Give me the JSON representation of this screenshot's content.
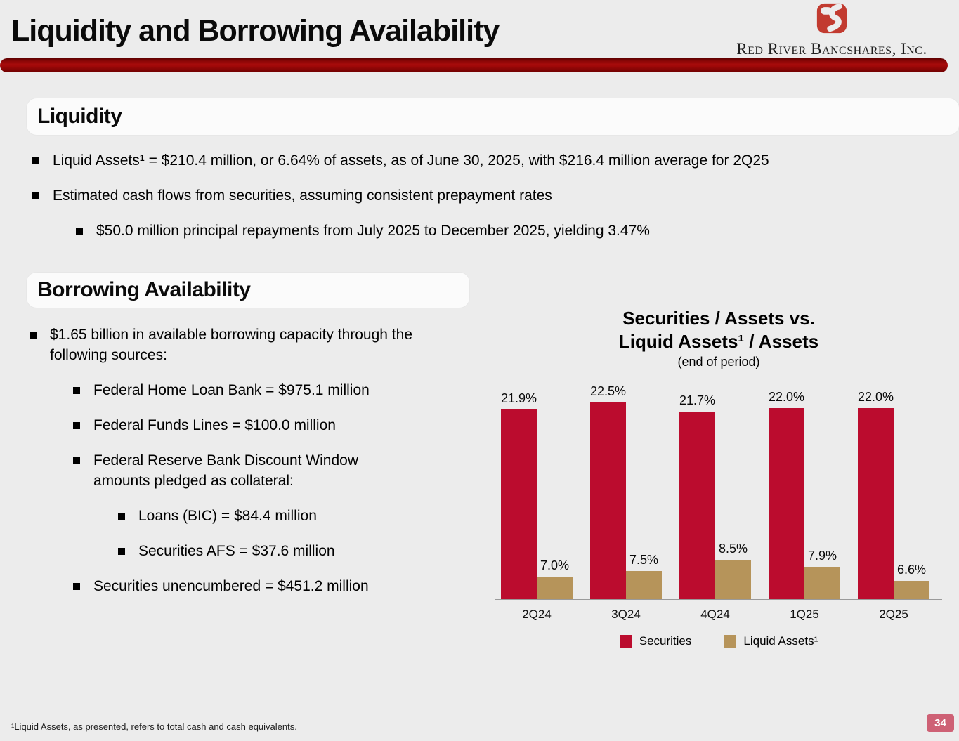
{
  "slide": {
    "title": "Liquidity and Borrowing Availability",
    "page_number": "34",
    "footnote": "¹Liquid Assets, as presented, refers to total cash and cash equivalents."
  },
  "logo": {
    "company": "Red River Bancshares, Inc."
  },
  "sections": {
    "liquidity": {
      "heading": "Liquidity",
      "items": [
        {
          "level": 1,
          "text": "Liquid Assets¹ = $210.4 million, or 6.64% of assets, as of June 30, 2025, with $216.4 million average for 2Q25"
        },
        {
          "level": 1,
          "text": "Estimated cash flows from securities, assuming consistent prepayment rates"
        },
        {
          "level": 2,
          "text": "$50.0 million principal repayments from July 2025 to December 2025, yielding 3.47%"
        }
      ]
    },
    "borrowing": {
      "heading": "Borrowing Availability",
      "items": [
        {
          "level": 1,
          "text": "$1.65 billion in available borrowing capacity through the following sources:"
        },
        {
          "level": 2,
          "text": "Federal Home Loan Bank = $975.1 million"
        },
        {
          "level": 2,
          "text": "Federal Funds Lines = $100.0 million"
        },
        {
          "level": 2,
          "text": "Federal Reserve Bank Discount Window amounts pledged as collateral:"
        },
        {
          "level": 3,
          "text": "Loans (BIC) = $84.4 million"
        },
        {
          "level": 3,
          "text": "Securities AFS = $37.6 million"
        },
        {
          "level": 2,
          "text": "Securities unencumbered = $451.2 million"
        }
      ]
    }
  },
  "chart_data": {
    "type": "bar",
    "title_line1": "Securities / Assets vs.",
    "title_line2": "Liquid Assets¹ / Assets",
    "subtitle": "(end of period)",
    "categories": [
      "2Q24",
      "3Q24",
      "4Q24",
      "1Q25",
      "2Q25"
    ],
    "series": [
      {
        "name": "Securities",
        "color": "#BB0C2E",
        "values": [
          21.9,
          22.5,
          21.7,
          22.0,
          22.0
        ],
        "labels": [
          "21.9%",
          "22.5%",
          "21.7%",
          "22.0%",
          "22.0%"
        ]
      },
      {
        "name": "Liquid Assets¹",
        "color": "#B6945A",
        "values": [
          7.0,
          7.5,
          8.5,
          7.9,
          6.6
        ],
        "labels": [
          "7.0%",
          "7.5%",
          "8.5%",
          "7.9%",
          "6.6%"
        ]
      }
    ],
    "unit": "%",
    "axis": {
      "y_min": 5,
      "y_max": 23.5,
      "gridlines": false,
      "data_labels": true,
      "legend_position": "bottom"
    }
  },
  "colors": {
    "background": "#ECECEC",
    "securities_red": "#BB0C2E",
    "liquid_tan": "#B6945A",
    "brand_red": "#C23B30",
    "divider_red": "#9E0B0C",
    "badge_pink": "#CE6175",
    "text": "#000000"
  }
}
